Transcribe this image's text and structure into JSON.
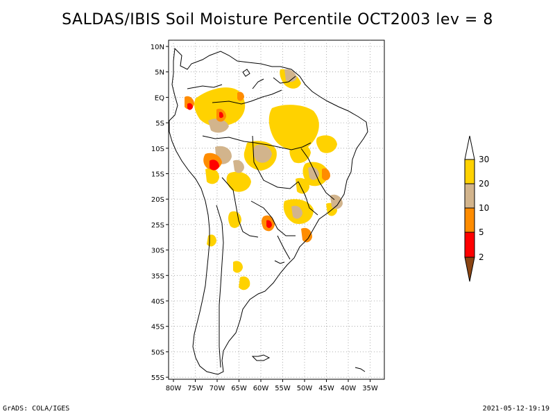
{
  "title": "SALDAS/IBIS Soil Moisture Percentile OCT2003 lev = 8",
  "footer": {
    "left": "GrADS: COLA/IGES",
    "right": "2021-05-12-19:19"
  },
  "map": {
    "region": "South America",
    "lon_labels": [
      "80W",
      "75W",
      "70W",
      "65W",
      "60W",
      "55W",
      "50W",
      "45W",
      "40W",
      "35W"
    ],
    "lat_labels": [
      "10N",
      "5N",
      "EQ",
      "5S",
      "10S",
      "15S",
      "20S",
      "25S",
      "30S",
      "35S",
      "40S",
      "45S",
      "50S",
      "55S"
    ],
    "gridlines": "dotted"
  },
  "legend": {
    "levels": [
      "30",
      "20",
      "10",
      "5",
      "2"
    ],
    "colors": {
      "above_30": "#ffffff",
      "20_30": "#ffd200",
      "10_20": "#d2b48c",
      "5_10": "#ff8c00",
      "2_5": "#ff0000",
      "below_2": "#8b4513"
    }
  }
}
